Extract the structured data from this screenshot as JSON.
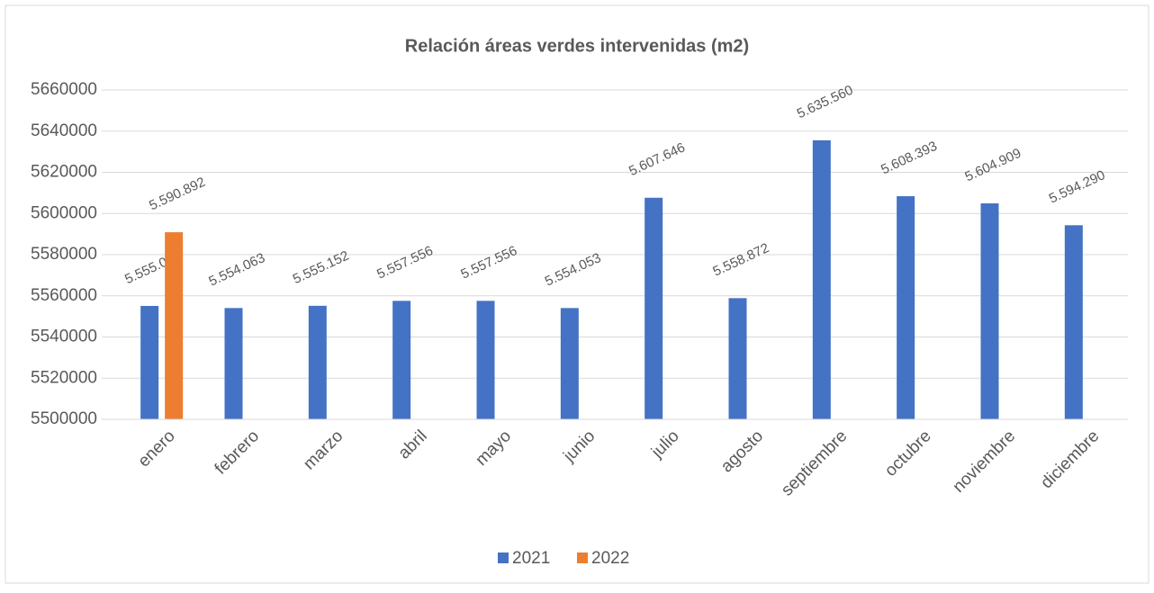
{
  "chart_data": {
    "type": "bar",
    "title": "Relación áreas verdes intervenidas (m2)",
    "categories": [
      "enero",
      "febrero",
      "marzo",
      "abril",
      "mayo",
      "junio",
      "julio",
      "agosto",
      "septiembre",
      "octubre",
      "noviembre",
      "diciembre"
    ],
    "series": [
      {
        "name": "2021",
        "color": "#4472c4",
        "values": [
          5555094,
          5554063,
          5555152,
          5557556,
          5557556,
          5554053,
          5607646,
          5558872,
          5635560,
          5608393,
          5604909,
          5594290
        ],
        "value_labels": [
          "5.555.094",
          "5.554.063",
          "5.555.152",
          "5.557.556",
          "5.557.556",
          "5.554.053",
          "5.607.646",
          "5.558.872",
          "5.635.560",
          "5.608.393",
          "5.604.909",
          "5.594.290"
        ]
      },
      {
        "name": "2022",
        "color": "#ed7d31",
        "values": [
          5590892,
          null,
          null,
          null,
          null,
          null,
          null,
          null,
          null,
          null,
          null,
          null
        ],
        "value_labels": [
          "5.590.892",
          null,
          null,
          null,
          null,
          null,
          null,
          null,
          null,
          null,
          null,
          null
        ]
      }
    ],
    "ylim": [
      5500000,
      5660000
    ],
    "yticks": [
      5500000,
      5520000,
      5540000,
      5560000,
      5580000,
      5600000,
      5620000,
      5640000,
      5660000
    ],
    "grid": true,
    "legend": "bottom"
  }
}
